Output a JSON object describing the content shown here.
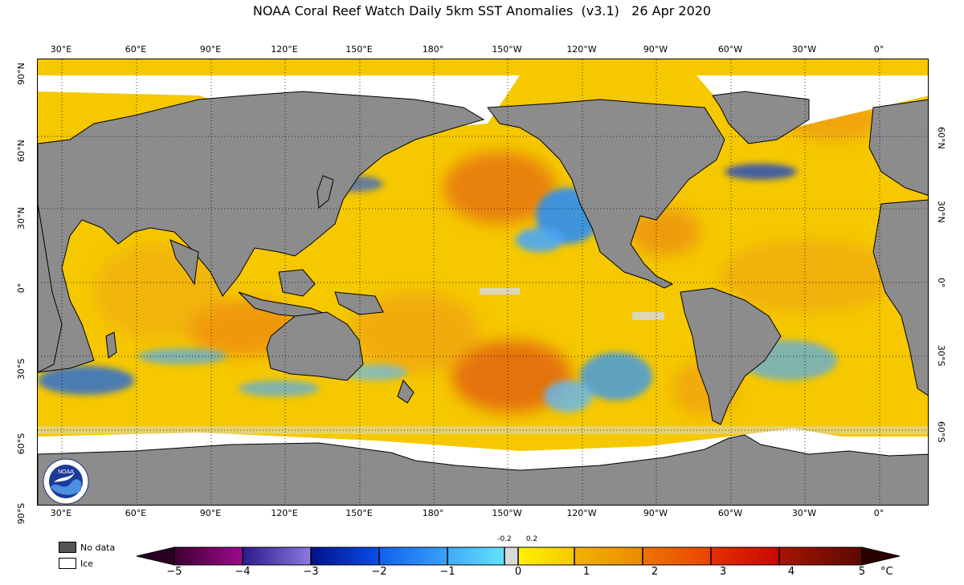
{
  "title": "NOAA Coral Reef Watch Daily 5km SST Anomalies  (v3.1)   26 Apr 2020",
  "lon_labels": [
    "30°E",
    "60°E",
    "90°E",
    "120°E",
    "150°E",
    "180°",
    "150°W",
    "120°W",
    "90°W",
    "60°W",
    "30°W",
    "0°"
  ],
  "lat_labels_left": [
    "90°N",
    "60°N",
    "30°N",
    "0°",
    "30°S",
    "60°S",
    "90°S"
  ],
  "lat_labels_right": [
    "60°N",
    "30°N",
    "0°",
    "30°S",
    "60°S"
  ],
  "legend": {
    "no_data": "No data",
    "ice": "Ice"
  },
  "colors": {
    "no_data": "#8c8c8c",
    "ice": "#ffffff",
    "land": "#8c8c8c"
  },
  "colorbar": {
    "ticks": [
      "−5",
      "−4",
      "−3",
      "−2",
      "−1",
      "0",
      "1",
      "2",
      "3",
      "4",
      "5"
    ],
    "small_ticks": [
      "-0.2",
      "0.2"
    ],
    "unit": "°C"
  },
  "logo": {
    "text": "NOAA"
  }
}
